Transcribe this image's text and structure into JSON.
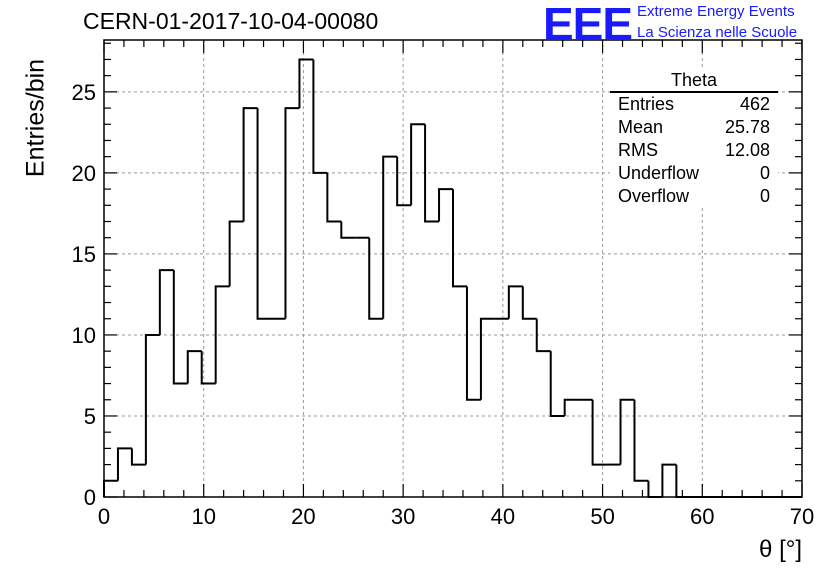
{
  "header": {
    "run_title": "CERN-01-2017-10-04-00080",
    "logo_text": "EEE",
    "logo_line1": "Extreme Energy Events",
    "logo_line2": "La Scienza nelle Scuole"
  },
  "stats_box": {
    "title": "Theta",
    "rows": [
      {
        "label": "Entries",
        "value": "462"
      },
      {
        "label": "Mean",
        "value": "25.78"
      },
      {
        "label": "RMS",
        "value": "12.08"
      },
      {
        "label": "Underflow",
        "value": "0"
      },
      {
        "label": "Overflow",
        "value": "0"
      }
    ]
  },
  "colors": {
    "logo": "#1a1aff",
    "histogram": "#000000",
    "grid": "#999999"
  },
  "chart_data": {
    "type": "bar",
    "style": "step-histogram",
    "xlabel": "θ [°]",
    "ylabel": "Entries/bin",
    "xlim": [
      0,
      70
    ],
    "ylim": [
      0,
      28.2
    ],
    "bin_width": 1.4,
    "bin_start": 0,
    "values": [
      1,
      3,
      2,
      10,
      14,
      7,
      9,
      7,
      13,
      17,
      24,
      11,
      11,
      24,
      27,
      20,
      17,
      16,
      16,
      11,
      21,
      18,
      23,
      17,
      19,
      13,
      6,
      11,
      11,
      13,
      11,
      9,
      5,
      6,
      6,
      2,
      2,
      6,
      1,
      0,
      2,
      0,
      0,
      0,
      0,
      0,
      0,
      0,
      0,
      0
    ],
    "x_ticks": [
      0,
      10,
      20,
      30,
      40,
      50,
      60,
      70
    ],
    "y_ticks": [
      0,
      5,
      10,
      15,
      20,
      25
    ],
    "grid": true
  }
}
